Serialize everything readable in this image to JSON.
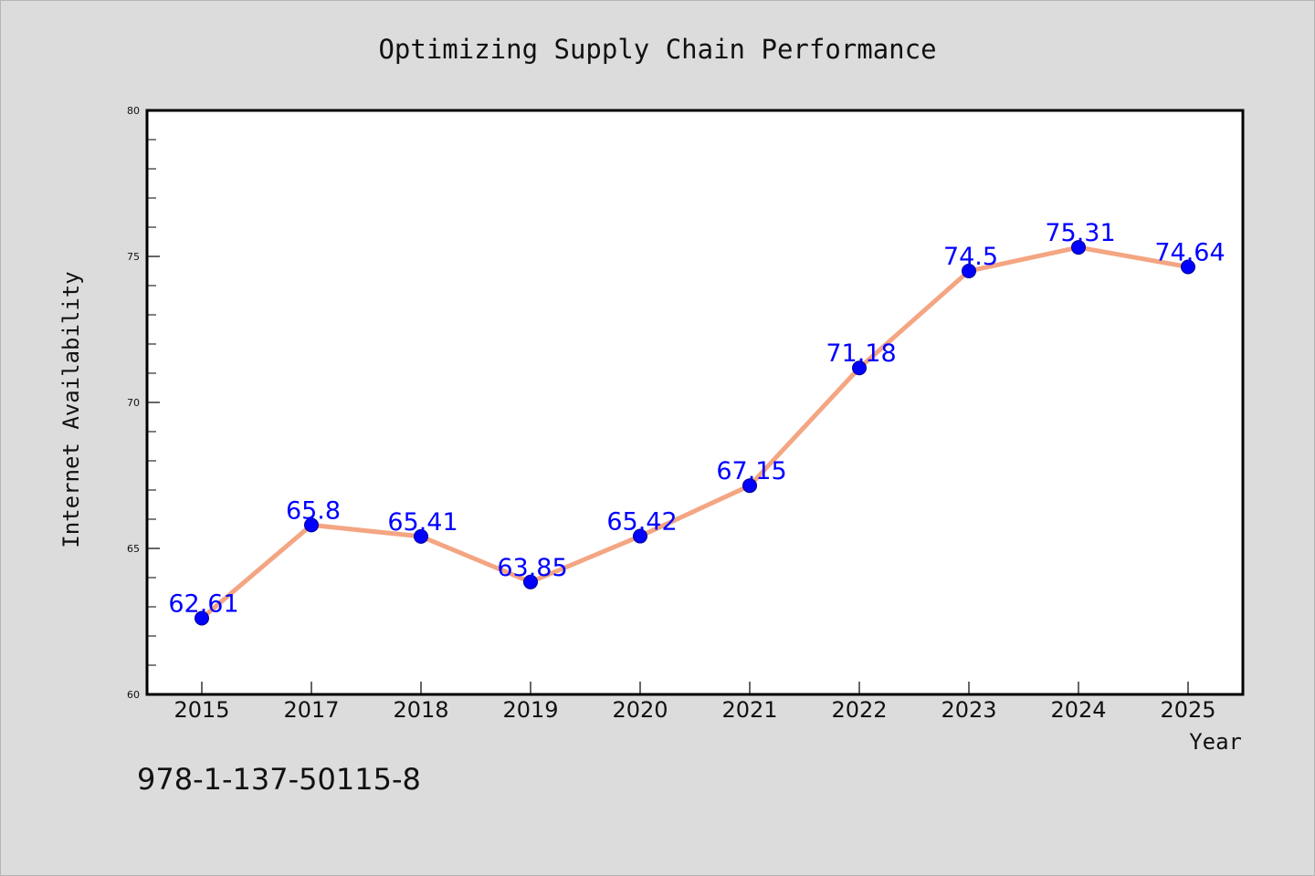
{
  "chart_data": {
    "type": "line",
    "title": "Optimizing Supply Chain Performance",
    "xlabel": "Year",
    "ylabel": "Internet Availability",
    "categories": [
      "2015",
      "2017",
      "2018",
      "2019",
      "2020",
      "2021",
      "2022",
      "2023",
      "2024",
      "2025"
    ],
    "series": [
      {
        "values": [
          62.61,
          65.8,
          65.41,
          63.85,
          65.42,
          67.15,
          71.18,
          74.5,
          75.31,
          74.64
        ],
        "data_labels": [
          "62.61",
          "65.8",
          "65.41",
          "63.85",
          "65.42",
          "67.15",
          "71.18",
          "74.5",
          "75.31",
          "74.64"
        ]
      }
    ],
    "ylim": [
      60,
      80
    ],
    "y_ticks": [
      "60",
      "65",
      "70",
      "75",
      "80"
    ],
    "grid": false,
    "line_color": "#f4a582",
    "marker_color": "#0000ff",
    "label_color": "#0000ff"
  },
  "footer_code": "978-1-137-50115-8"
}
